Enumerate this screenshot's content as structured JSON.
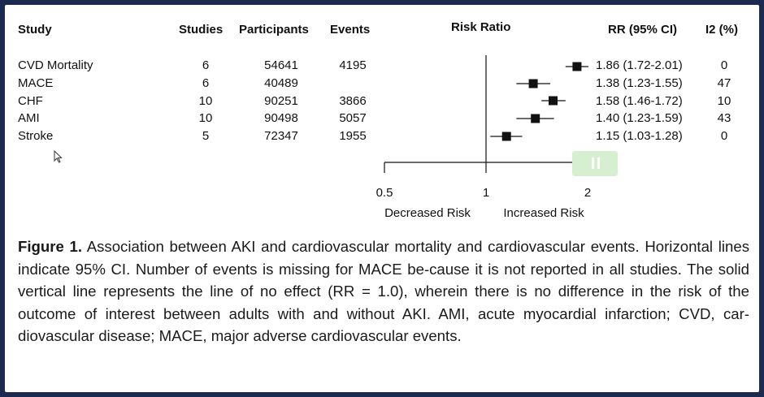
{
  "headers": {
    "study": "Study",
    "studies": "Studies",
    "participants": "Participants",
    "events": "Events",
    "risk_ratio": "Risk Ratio",
    "rr_ci": "RR (95% CI)",
    "i2": "I2 (%)"
  },
  "chart_data": {
    "type": "forest",
    "title": "Risk Ratio",
    "x_axis": {
      "scale": "log",
      "ticks": [
        0.5,
        1,
        2
      ],
      "tick_labels": [
        "0.5",
        "1",
        "2"
      ],
      "reference_line": 1,
      "left_label": "Decreased Risk",
      "right_label": "Increased Risk"
    },
    "rows": [
      {
        "study": "CVD Mortality",
        "studies": "6",
        "participants": "54641",
        "events": "4195",
        "rr": 1.86,
        "lower": 1.72,
        "upper": 2.01,
        "rr_text": "1.86 (1.72-2.01)",
        "i2": "0"
      },
      {
        "study": "MACE",
        "studies": "6",
        "participants": "40489",
        "events": "",
        "rr": 1.38,
        "lower": 1.23,
        "upper": 1.55,
        "rr_text": "1.38 (1.23-1.55)",
        "i2": "47"
      },
      {
        "study": "CHF",
        "studies": "10",
        "participants": "90251",
        "events": "3866",
        "rr": 1.58,
        "lower": 1.46,
        "upper": 1.72,
        "rr_text": "1.58 (1.46-1.72)",
        "i2": "10"
      },
      {
        "study": "AMI",
        "studies": "10",
        "participants": "90498",
        "events": "5057",
        "rr": 1.4,
        "lower": 1.23,
        "upper": 1.59,
        "rr_text": "1.40 (1.23-1.59)",
        "i2": "43"
      },
      {
        "study": "Stroke",
        "studies": "5",
        "participants": "72347",
        "events": "1955",
        "rr": 1.15,
        "lower": 1.03,
        "upper": 1.28,
        "rr_text": "1.15 (1.03-1.28)",
        "i2": "0"
      }
    ]
  },
  "caption": {
    "label": "Figure 1.",
    "text": "Association between AKI and cardiovascular mortality and cardiovascular events. Horizontal lines indicate 95% CI. Number of events is missing for MACE be-cause it is not reported in all studies. The solid vertical line represents the line of no effect (RR = 1.0), wherein there is no difference in the risk of the outcome of interest between adults with and without AKI. AMI, acute myocardial infarction; CVD, car-diovascular disease; MACE, major adverse cardiovascular events."
  },
  "colors": {
    "frame": "#1b2a4e",
    "ink": "#111111",
    "pause_overlay": "#d7efd1"
  }
}
